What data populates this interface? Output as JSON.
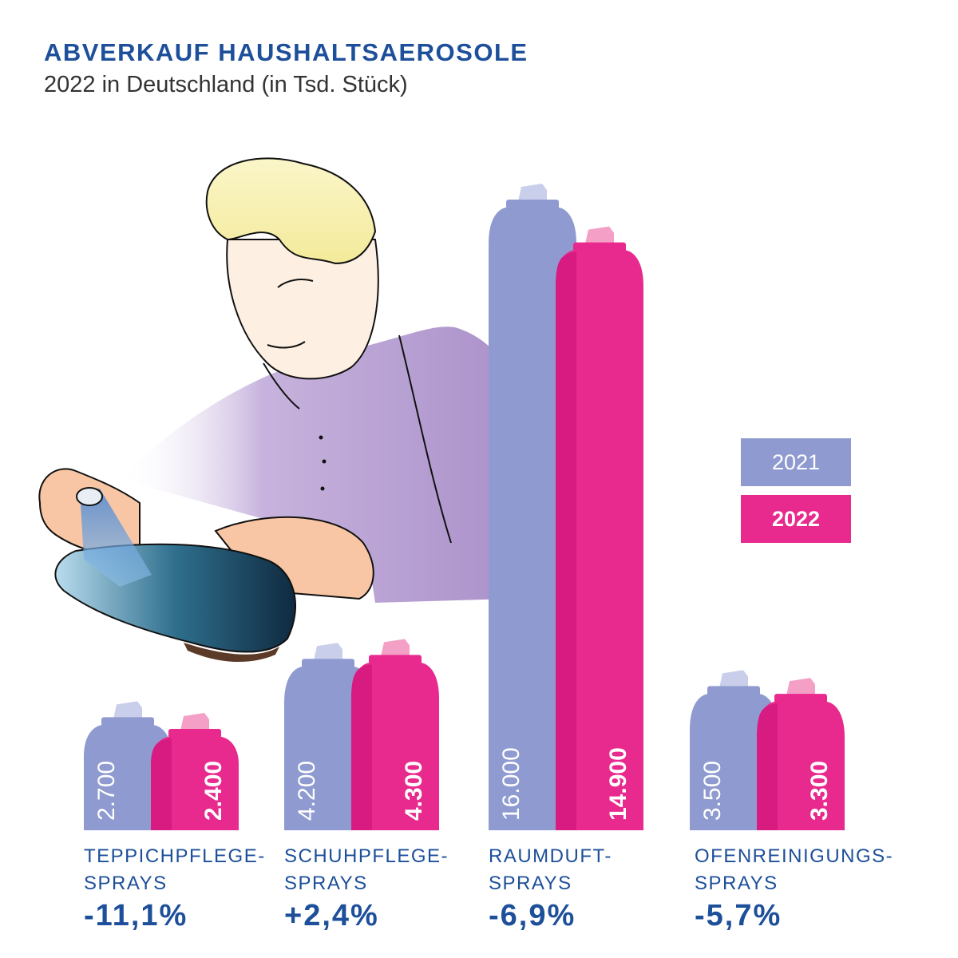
{
  "title": "ABVERKAUF HAUSHALTSAEROSOLE",
  "subtitle": "2022 in Deutschland (in Tsd. Stück)",
  "colors": {
    "series_2021": "#8f9bd0",
    "series_2022": "#e8298d",
    "text_blue": "#1d4f9a"
  },
  "legend": {
    "label_2021": "2021",
    "label_2022": "2022",
    "placement": "right"
  },
  "categories": [
    {
      "label_line1": "TEPPICHPFLEGE-",
      "label_line2": "SPRAYS",
      "change": "-11,1%"
    },
    {
      "label_line1": "SCHUHPFLEGE-",
      "label_line2": "SPRAYS",
      "change": "+2,4%"
    },
    {
      "label_line1": "RAUMDUFT-",
      "label_line2": "SPRAYS",
      "change": "-6,9%"
    },
    {
      "label_line1": "OFENREINIGUNGS-",
      "label_line2": "SPRAYS",
      "change": "-5,7%"
    }
  ],
  "chart_data": {
    "type": "bar",
    "categories": [
      "TEPPICHPFLEGE-SPRAYS",
      "SCHUHPFLEGE-SPRAYS",
      "RAUMDUFT-SPRAYS",
      "OFENREINIGUNGS-SPRAYS"
    ],
    "series": [
      {
        "name": "2021",
        "values": [
          2700,
          4200,
          16000,
          3500
        ],
        "labels": [
          "2.700",
          "4.200",
          "16.000",
          "3.500"
        ]
      },
      {
        "name": "2022",
        "values": [
          2400,
          4300,
          14900,
          3300
        ],
        "labels": [
          "2.400",
          "4.300",
          "14.900",
          "3.300"
        ]
      }
    ],
    "changes": [
      "-11,1%",
      "+2,4%",
      "-6,9%",
      "-5,7%"
    ],
    "title": "ABVERKAUF HAUSHALTSAEROSOLE",
    "subtitle": "2022 in Deutschland (in Tsd. Stück)",
    "ylim": [
      0,
      16000
    ],
    "grid": false,
    "legend": "right"
  }
}
